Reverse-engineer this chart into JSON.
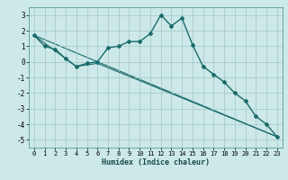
{
  "xlabel": "Humidex (Indice chaleur)",
  "background_color": "#cce8e8",
  "grid_color": "#aacccc",
  "line_color": "#1a6b6b",
  "xlim": [
    -0.5,
    23.5
  ],
  "ylim": [
    -5.5,
    3.5
  ],
  "xticks": [
    0,
    1,
    2,
    3,
    4,
    5,
    6,
    7,
    8,
    9,
    10,
    11,
    12,
    13,
    14,
    15,
    16,
    17,
    18,
    19,
    20,
    21,
    22,
    23
  ],
  "yticks": [
    -5,
    -4,
    -3,
    -2,
    -1,
    0,
    1,
    2,
    3
  ],
  "series0_x": [
    0,
    1,
    2,
    3,
    4,
    5,
    6,
    7,
    8,
    9,
    10,
    11,
    12,
    13,
    14,
    15,
    16,
    17,
    18,
    19,
    20,
    21,
    22,
    23
  ],
  "series0_y": [
    1.7,
    1.0,
    0.8,
    0.2,
    -0.3,
    -0.1,
    0.0,
    0.9,
    1.0,
    1.3,
    1.3,
    1.8,
    3.0,
    2.3,
    2.8,
    1.1,
    -0.3,
    -0.8,
    -1.3,
    -2.0,
    -2.5,
    -3.5,
    -4.0,
    -4.8
  ],
  "series1_x": [
    0,
    23
  ],
  "series1_y": [
    1.7,
    -4.8
  ],
  "series2_x": [
    0,
    4,
    6,
    23
  ],
  "series2_y": [
    1.7,
    -0.3,
    -0.1,
    -4.8
  ]
}
